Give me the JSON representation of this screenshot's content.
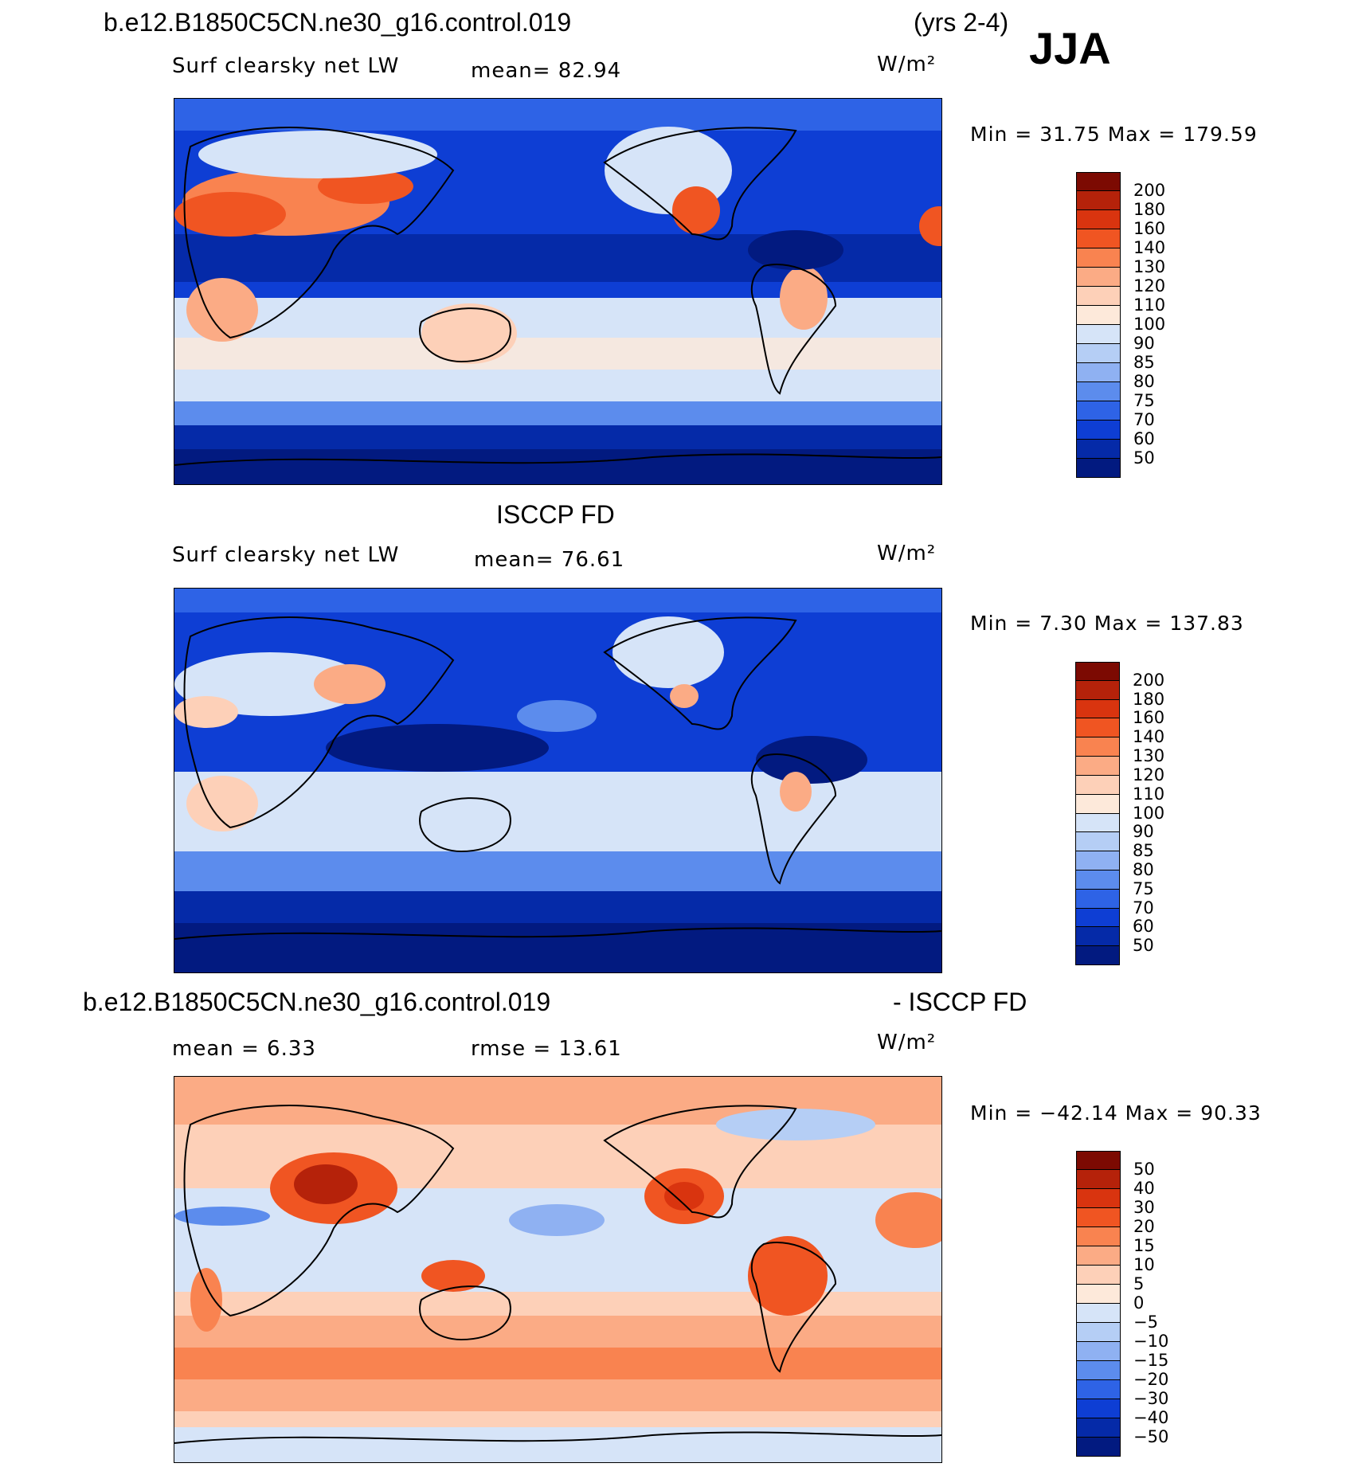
{
  "header": {
    "case_title": "b.e12.B1850C5CN.ne30_g16.control.019",
    "years": "(yrs 2-4)",
    "season": "JJA"
  },
  "panels": [
    {
      "id": "model",
      "title": "",
      "variable": "Surf clearsky net LW",
      "stat_text": "mean=   82.94",
      "units": "W/m²",
      "min_max": "Min =   31.75 Max = 179.59",
      "colorbar_labels": [
        "200",
        "180",
        "160",
        "140",
        "130",
        "120",
        "110",
        "100",
        "90",
        "85",
        "80",
        "75",
        "70",
        "60",
        "50"
      ],
      "colorbar_colors": [
        "#7c0a02",
        "#b5220a",
        "#d9340f",
        "#f05522",
        "#f98350",
        "#fbab85",
        "#fdd0b8",
        "#fde9da",
        "#d6e4f8",
        "#b5cef5",
        "#8fb1f2",
        "#5c8ced",
        "#2e63e6",
        "#0e3ed4",
        "#052aa8",
        "#021a80"
      ]
    },
    {
      "id": "obs",
      "title": "ISCCP FD",
      "variable": "Surf clearsky net LW",
      "stat_text": "mean=   76.61",
      "units": "W/m²",
      "min_max": "Min =    7.30 Max = 137.83",
      "colorbar_labels": [
        "200",
        "180",
        "160",
        "140",
        "130",
        "120",
        "110",
        "100",
        "90",
        "85",
        "80",
        "75",
        "70",
        "60",
        "50"
      ],
      "colorbar_colors": [
        "#7c0a02",
        "#b5220a",
        "#d9340f",
        "#f05522",
        "#f98350",
        "#fbab85",
        "#fdd0b8",
        "#fde9da",
        "#d6e4f8",
        "#b5cef5",
        "#8fb1f2",
        "#5c8ced",
        "#2e63e6",
        "#0e3ed4",
        "#052aa8",
        "#021a80"
      ]
    },
    {
      "id": "diff",
      "title_left": "b.e12.B1850C5CN.ne30_g16.control.019",
      "title_right": "- ISCCP FD",
      "stat_text": "mean =    6.33",
      "stat_text2": "rmse =   13.61",
      "units": "W/m²",
      "min_max": "Min = −42.14 Max =   90.33",
      "colorbar_labels": [
        "50",
        "40",
        "30",
        "20",
        "15",
        "10",
        "5",
        "0",
        "−5",
        "−10",
        "−15",
        "−20",
        "−30",
        "−40",
        "−50"
      ],
      "colorbar_colors": [
        "#7c0a02",
        "#b5220a",
        "#d9340f",
        "#f05522",
        "#f98350",
        "#fbab85",
        "#fdd0b8",
        "#fde9da",
        "#d6e4f8",
        "#b5cef5",
        "#8fb1f2",
        "#5c8ced",
        "#2e63e6",
        "#0e3ed4",
        "#052aa8",
        "#021a80"
      ]
    }
  ]
}
